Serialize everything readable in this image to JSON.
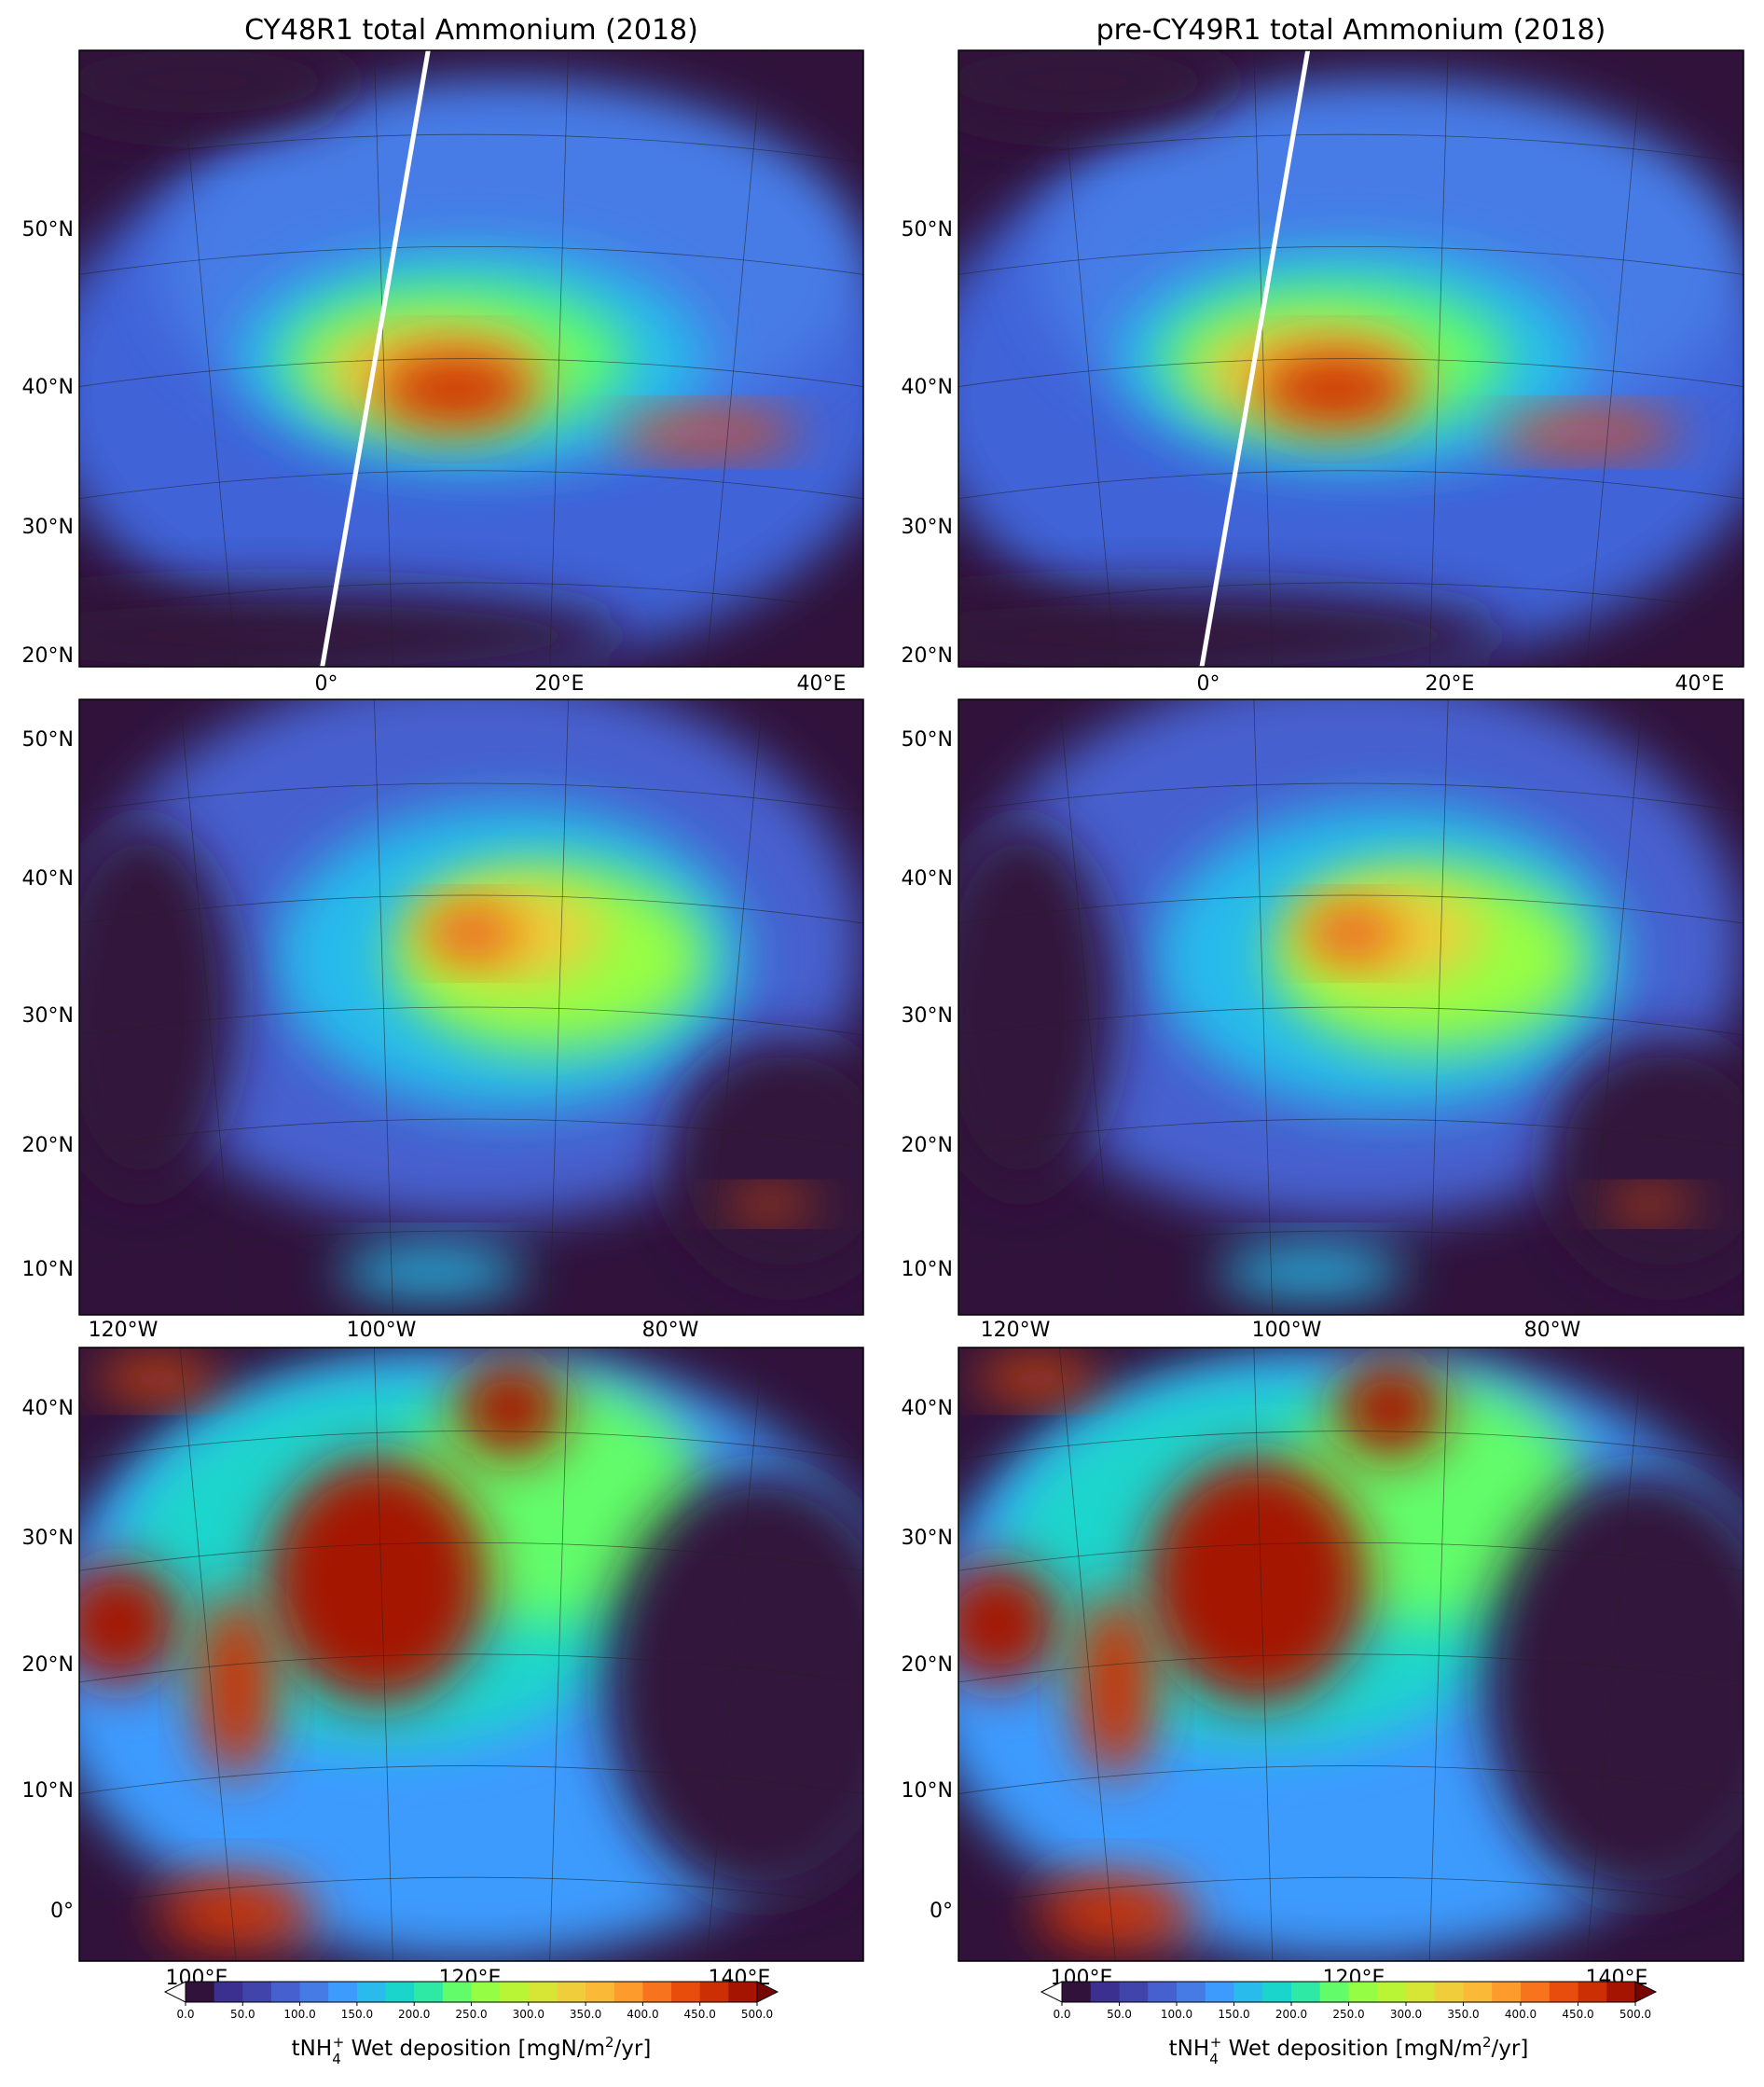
{
  "columns": [
    {
      "title": "CY48R1 total Ammonium (2018)"
    },
    {
      "title": "pre-CY49R1 total Ammonium (2018)"
    }
  ],
  "rows": [
    {
      "lat_labels": [
        "50°N",
        "40°N",
        "30°N",
        "20°N"
      ],
      "lon_labels": [
        "0°",
        "20°E",
        "40°E"
      ]
    },
    {
      "lat_labels": [
        "50°N",
        "40°N",
        "30°N",
        "20°N",
        "10°N"
      ],
      "lon_labels": [
        "120°W",
        "100°W",
        "80°W"
      ]
    },
    {
      "lat_labels": [
        "40°N",
        "30°N",
        "20°N",
        "10°N",
        "0°"
      ],
      "lon_labels": [
        "100°E",
        "120°E",
        "140°E"
      ]
    }
  ],
  "colorbar": {
    "lim": [
      0,
      500
    ],
    "ticks": [
      {
        "value": 0,
        "label": "0.0"
      },
      {
        "value": 50,
        "label": "50.0"
      },
      {
        "value": 100,
        "label": "100.0"
      },
      {
        "value": 150,
        "label": "150.0"
      },
      {
        "value": 200,
        "label": "200.0"
      },
      {
        "value": 250,
        "label": "250.0"
      },
      {
        "value": 300,
        "label": "300.0"
      },
      {
        "value": 350,
        "label": "350.0"
      },
      {
        "value": 400,
        "label": "400.0"
      },
      {
        "value": 450,
        "label": "450.0"
      },
      {
        "value": 500,
        "label": "500.0"
      }
    ],
    "colors": [
      "#30123b",
      "#3b2f8f",
      "#4145ab",
      "#4660cf",
      "#467be6",
      "#3e9bfe",
      "#28bbec",
      "#1ad5cc",
      "#2ee9a5",
      "#62fc6b",
      "#95fe44",
      "#b9f435",
      "#d7e535",
      "#f0cd3a",
      "#fbb938",
      "#fe9b2d",
      "#f8731e",
      "#e94d0d",
      "#cd2f04",
      "#a51301"
    ],
    "under_color": "#ffffff",
    "over_color": "#7a0403",
    "label": {
      "base": "tNH",
      "sub": "4",
      "sup": "+",
      "text": "  Wet deposition [mgN/m",
      "exp": "2",
      "end": "/yr]"
    }
  }
}
